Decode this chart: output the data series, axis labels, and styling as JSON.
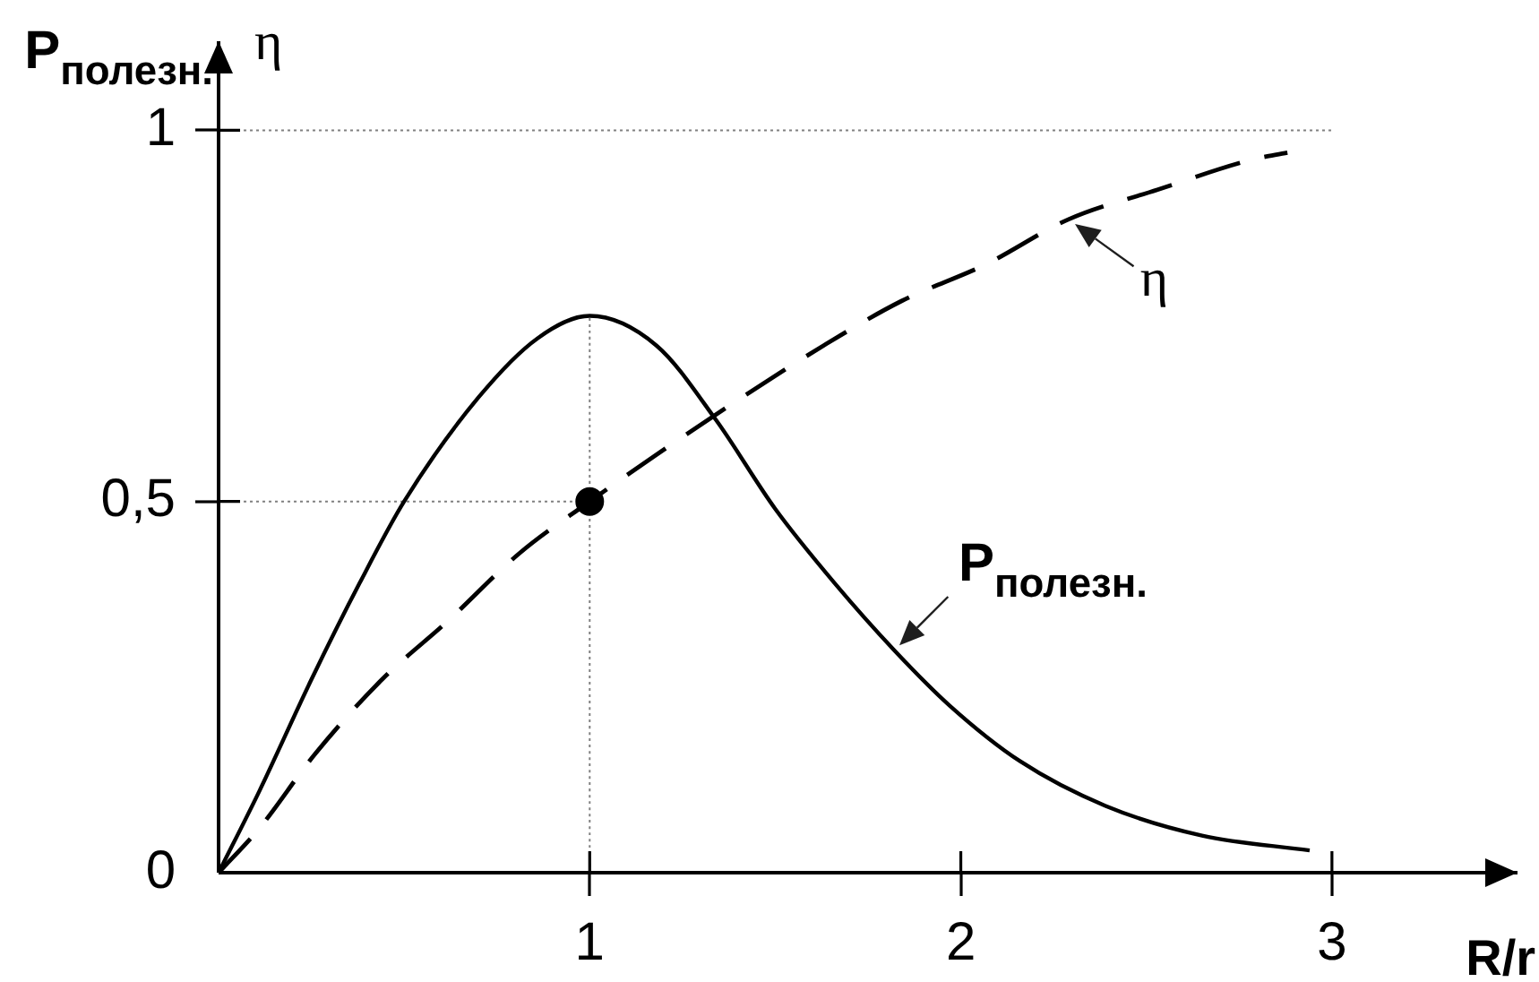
{
  "chart_data": {
    "type": "line",
    "xlabel": "R/r",
    "ylabel": "P$_{полезн.}$ η",
    "xlim": [
      0,
      3.5
    ],
    "ylim": [
      0,
      1.12
    ],
    "xticks": [
      1,
      2,
      3
    ],
    "yticks": [
      0,
      {
        "value": 0.5,
        "label": "0,5"
      },
      1
    ],
    "series": [
      {
        "name": "P$_{полезн.}$",
        "color": "#000000",
        "line_style": "solid",
        "x": [
          0,
          0.11,
          0.25,
          0.38,
          0.5,
          0.7,
          0.86,
          1,
          1.18,
          1.34,
          1.5,
          1.66,
          1.82,
          1.97,
          2.16,
          2.39,
          2.65,
          2.94
        ],
        "values": [
          0,
          0.11,
          0.26,
          0.39,
          0.5,
          0.64,
          0.72,
          0.75,
          0.71,
          0.61,
          0.49,
          0.39,
          0.3,
          0.225,
          0.15,
          0.09,
          0.05,
          0.03
        ]
      },
      {
        "name": "η",
        "color": "#000000",
        "line_style": "dashed",
        "x": [
          0,
          0.11,
          0.26,
          0.44,
          0.62,
          0.81,
          1,
          1.2,
          1.41,
          1.63,
          1.84,
          2.07,
          2.29,
          2.53,
          2.78,
          2.88
        ],
        "values": [
          0,
          0.06,
          0.16,
          0.26,
          0.34,
          0.43,
          0.5,
          0.57,
          0.64,
          0.71,
          0.77,
          0.82,
          0.88,
          0.92,
          0.96,
          0.97
        ]
      },
      {
        "type": "scatter",
        "color": "#000000",
        "marker": "circle",
        "x": [
          1
        ],
        "values": [
          0.5
        ]
      },
      {
        "color": "#808080",
        "line_style": "dotted",
        "x": [
          0,
          3
        ],
        "values": [
          1,
          1
        ]
      },
      {
        "color": "#808080",
        "line_style": "dotted",
        "x": [
          0,
          1
        ],
        "values": [
          0.5,
          0.5
        ]
      },
      {
        "color": "#808080",
        "line_style": "dotted",
        "x": [
          1,
          1
        ],
        "values": [
          0,
          0.75
        ]
      }
    ]
  }
}
